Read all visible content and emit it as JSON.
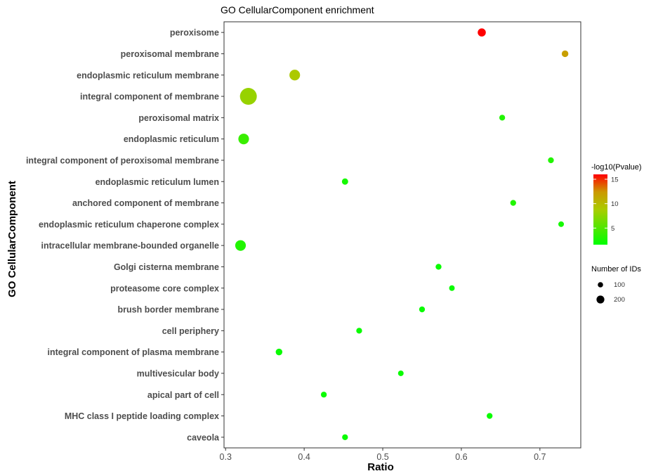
{
  "chart_data": {
    "type": "scatter",
    "title": "GO CellularComponent enrichment",
    "xlabel": "Ratio",
    "ylabel": "GO CellularComponent",
    "xlim": [
      0.298,
      0.752
    ],
    "xticks": [
      "0.3",
      "0.4",
      "0.5",
      "0.6",
      "0.7"
    ],
    "xtick_values": [
      0.3,
      0.4,
      0.5,
      0.6,
      0.7
    ],
    "grid": false,
    "legend_position": "right",
    "categories": [
      "peroxisome",
      "peroxisomal membrane",
      "endoplasmic reticulum membrane",
      "integral component of membrane",
      "peroxisomal matrix",
      "endoplasmic reticulum",
      "integral component of peroxisomal membrane",
      "endoplasmic reticulum lumen",
      "anchored component of membrane",
      "endoplasmic reticulum chaperone complex",
      "intracellular membrane-bounded organelle",
      "Golgi cisterna membrane",
      "proteasome core complex",
      "brush border membrane",
      "cell periphery",
      "integral component of plasma membrane",
      "multivesicular body",
      "apical part of cell",
      "MHC class I peptide loading complex",
      "caveola"
    ],
    "ratio": [
      0.626,
      0.732,
      0.388,
      0.329,
      0.652,
      0.323,
      0.714,
      0.452,
      0.666,
      0.727,
      0.319,
      0.571,
      0.588,
      0.55,
      0.47,
      0.368,
      0.523,
      0.425,
      0.636,
      0.452
    ],
    "neg_log10_pvalue": [
      16,
      12,
      9,
      8,
      3,
      4,
      3,
      2.5,
      3,
      2.5,
      3,
      2,
      2,
      2,
      2,
      2,
      2,
      2,
      2,
      2
    ],
    "number_of_ids": [
      20,
      10,
      45,
      150,
      6,
      45,
      6,
      8,
      6,
      5,
      45,
      6,
      5,
      6,
      6,
      10,
      5,
      6,
      6,
      6
    ],
    "legend_color": {
      "title": "-log10(Pvalue)",
      "labels": [
        "15",
        "10",
        "5"
      ],
      "values": [
        15,
        10,
        5
      ],
      "min": 1.6,
      "max": 16,
      "colors": [
        "#00ff00",
        "#ff0000"
      ]
    },
    "legend_size": {
      "title": "Number of IDs",
      "labels": [
        "100",
        "200"
      ],
      "values": [
        100,
        200
      ]
    }
  }
}
